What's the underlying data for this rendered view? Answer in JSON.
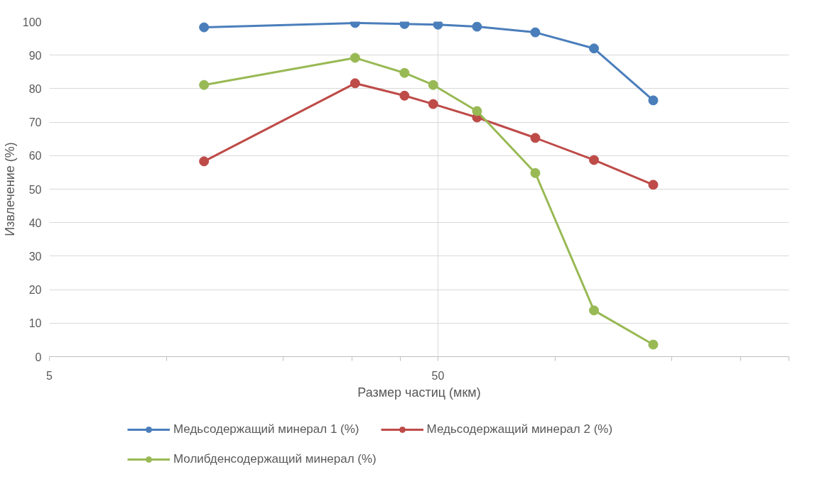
{
  "chart_data": {
    "type": "line",
    "xlabel": "Размер частиц (мкм)",
    "ylabel": "Извлечение (%)",
    "log": "x",
    "xlim": [
      5,
      400
    ],
    "xticks": [
      5,
      50
    ],
    "ylim": [
      0,
      100
    ],
    "yticks": [
      0,
      10,
      20,
      30,
      40,
      50,
      60,
      70,
      80,
      90,
      100
    ],
    "grid": true,
    "legend": "bottom",
    "marker": "circle",
    "line_style": "solid",
    "series": [
      {
        "name": "Медьсодержащий минерал 1 (%)",
        "color": "#4a7ebb",
        "x": [
          12.5,
          30.6,
          41,
          50,
          63,
          89,
          126,
          179
        ],
        "values": [
          98.3,
          99.6,
          99.3,
          99.1,
          98.5,
          96.8,
          92,
          76.5
        ]
      },
      {
        "name": "Медьсодержащий минерал 2 (%)",
        "color": "#be4b48",
        "x": [
          12.5,
          30.6,
          41,
          48.6,
          63,
          89,
          126,
          179
        ],
        "values": [
          58.3,
          81.6,
          77.9,
          75.4,
          71.4,
          65.3,
          58.7,
          51.3
        ]
      },
      {
        "name": "Молибденсодержащий минерал (%)",
        "color": "#98b954",
        "x": [
          12.5,
          30.6,
          41,
          48.6,
          63,
          89,
          126,
          179
        ],
        "values": [
          81.1,
          89.2,
          84.7,
          81.1,
          73.3,
          54.8,
          13.8,
          3.6
        ]
      }
    ]
  }
}
